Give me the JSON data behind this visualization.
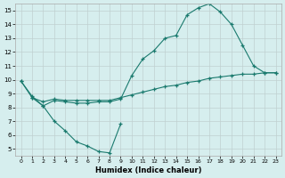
{
  "line_a_x": [
    0,
    1,
    2,
    3,
    4,
    5,
    6,
    7,
    8,
    9,
    10,
    11,
    12,
    13,
    14,
    15,
    16,
    17,
    18,
    19,
    20,
    21,
    22,
    23
  ],
  "line_a_y": [
    9.9,
    8.8,
    8.1,
    8.5,
    8.4,
    8.3,
    8.3,
    8.4,
    8.4,
    8.6,
    10.3,
    11.5,
    12.1,
    13.0,
    13.2,
    14.7,
    15.2,
    15.5,
    14.9,
    14.0,
    12.5,
    11.0,
    10.5,
    10.5
  ],
  "line_b_x": [
    0,
    1,
    2,
    3,
    4,
    5,
    6,
    7,
    8,
    9,
    10,
    11,
    12,
    13,
    14,
    15,
    16,
    17,
    18,
    19,
    20,
    21,
    22,
    23
  ],
  "line_b_y": [
    9.9,
    8.7,
    8.4,
    8.6,
    8.5,
    8.5,
    8.5,
    8.5,
    8.5,
    8.7,
    8.9,
    9.1,
    9.3,
    9.5,
    9.6,
    9.8,
    9.9,
    10.1,
    10.2,
    10.3,
    10.4,
    10.4,
    10.5,
    10.5
  ],
  "line_c_x": [
    1,
    2,
    3,
    4,
    5,
    6,
    7,
    8,
    9
  ],
  "line_c_y": [
    8.7,
    8.1,
    7.0,
    6.3,
    5.5,
    5.2,
    4.8,
    4.7,
    6.8
  ],
  "xlabel": "Humidex (Indice chaleur)",
  "xlim": [
    -0.5,
    23.5
  ],
  "ylim": [
    4.5,
    15.5
  ],
  "yticks": [
    5,
    6,
    7,
    8,
    9,
    10,
    11,
    12,
    13,
    14,
    15
  ],
  "xticks": [
    0,
    1,
    2,
    3,
    4,
    5,
    6,
    7,
    8,
    9,
    10,
    11,
    12,
    13,
    14,
    15,
    16,
    17,
    18,
    19,
    20,
    21,
    22,
    23
  ],
  "line_color": "#1a7a6e",
  "bg_color": "#d6eeee",
  "grid_color": "#c0d0d0"
}
